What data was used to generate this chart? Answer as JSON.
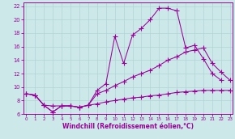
{
  "xlabel": "Windchill (Refroidissement éolien,°C)",
  "background_color": "#cde8e8",
  "line_color": "#990099",
  "xlim": [
    -0.3,
    23.3
  ],
  "ylim": [
    6.0,
    22.5
  ],
  "xticks": [
    0,
    1,
    2,
    3,
    4,
    5,
    6,
    7,
    8,
    9,
    10,
    11,
    12,
    13,
    14,
    15,
    16,
    17,
    18,
    19,
    20,
    21,
    22,
    23
  ],
  "yticks": [
    6,
    8,
    10,
    12,
    14,
    16,
    18,
    20,
    22
  ],
  "grid_color": "#b0d4d4",
  "top_x": [
    0,
    1,
    2,
    3,
    4,
    5,
    6,
    7,
    8,
    9,
    10,
    11,
    12,
    13,
    14,
    15,
    16,
    17,
    18,
    19,
    20,
    21,
    22
  ],
  "top_y": [
    9.0,
    8.8,
    7.3,
    6.3,
    7.2,
    7.2,
    7.0,
    7.3,
    9.5,
    10.5,
    17.5,
    13.5,
    17.7,
    18.7,
    20.0,
    21.7,
    21.7,
    21.3,
    15.8,
    16.2,
    14.2,
    12.0,
    11.0
  ],
  "mid_x": [
    0,
    1,
    2,
    3,
    4,
    5,
    6,
    7,
    8,
    9,
    10,
    11,
    12,
    13,
    14,
    15,
    16,
    17,
    18,
    19,
    20,
    21,
    22,
    23
  ],
  "mid_y": [
    9.0,
    8.8,
    7.3,
    6.3,
    7.2,
    7.2,
    7.0,
    7.3,
    9.0,
    9.5,
    10.2,
    10.8,
    11.5,
    12.0,
    12.5,
    13.2,
    14.0,
    14.5,
    15.2,
    15.5,
    15.8,
    13.5,
    12.2,
    11.0
  ],
  "bot_x": [
    0,
    1,
    2,
    3,
    4,
    5,
    6,
    7,
    8,
    9,
    10,
    11,
    12,
    13,
    14,
    15,
    16,
    17,
    18,
    19,
    20,
    21,
    22,
    23
  ],
  "bot_y": [
    9.0,
    8.8,
    7.3,
    7.2,
    7.2,
    7.2,
    7.0,
    7.3,
    7.5,
    7.8,
    8.0,
    8.2,
    8.4,
    8.5,
    8.7,
    8.8,
    9.0,
    9.2,
    9.3,
    9.4,
    9.5,
    9.5,
    9.5,
    9.5
  ]
}
